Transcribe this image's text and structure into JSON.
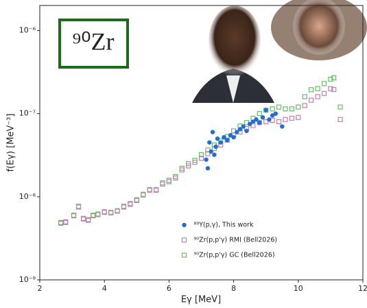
{
  "chart_data": {
    "type": "scatter",
    "title": null,
    "annotation": "⁹⁰Zr",
    "xlabel": "Eγ [MeV]",
    "ylabel": "f(Eγ) [MeV⁻³]",
    "xlim": [
      2,
      12
    ],
    "xticks": [
      2,
      4,
      6,
      8,
      10,
      12
    ],
    "ylim": [
      1e-09,
      2e-06
    ],
    "yscale": "log",
    "yticks": [
      {
        "value": 1e-09,
        "label": "10⁻⁹"
      },
      {
        "value": 1e-08,
        "label": "10⁻⁸"
      },
      {
        "value": 1e-07,
        "label": "10⁻⁷"
      },
      {
        "value": 1e-06,
        "label": "10⁻⁶"
      }
    ],
    "legend": "lower center",
    "series": [
      {
        "name": "⁸⁹Y(p,γ), This work",
        "color": "#1f6fd8",
        "marker": "circle",
        "x": [
          7.15,
          7.2,
          7.25,
          7.3,
          7.35,
          7.4,
          7.45,
          7.5,
          7.6,
          7.7,
          7.8,
          7.9,
          8.0,
          8.1,
          8.2,
          8.3,
          8.4,
          8.5,
          8.6,
          8.7,
          8.8,
          8.9,
          9.0,
          9.1,
          9.2,
          9.3,
          9.5
        ],
        "values": [
          2.8e-08,
          2.2e-08,
          4.5e-08,
          3.5e-08,
          6e-08,
          3.2e-08,
          4e-08,
          5e-08,
          4.5e-08,
          5.2e-08,
          4.8e-08,
          5.5e-08,
          5.2e-08,
          6e-08,
          6.5e-08,
          7e-08,
          6.2e-08,
          7.5e-08,
          8e-08,
          8.5e-08,
          7.8e-08,
          9e-08,
          1.1e-07,
          8.5e-08,
          9.5e-08,
          1e-07,
          7e-08
        ]
      },
      {
        "name": "⁹⁰Zr(p,p'γ) RMI (Bell2026)",
        "color": "#c77bb0",
        "marker": "square",
        "x": [
          2.65,
          2.8,
          3.05,
          3.2,
          3.35,
          3.5,
          3.65,
          3.8,
          4.0,
          4.2,
          4.4,
          4.6,
          4.8,
          5.0,
          5.2,
          5.4,
          5.6,
          5.8,
          6.0,
          6.2,
          6.4,
          6.6,
          6.8,
          7.0,
          7.2,
          7.4,
          7.6,
          7.8,
          8.0,
          8.2,
          8.4,
          8.6,
          8.8,
          9.0,
          9.2,
          9.4,
          9.6,
          9.8,
          10.0,
          10.2,
          10.4,
          10.6,
          10.8,
          11.0,
          11.1,
          11.3
        ],
        "values": [
          4.9e-09,
          5e-09,
          5.9e-09,
          7.5e-09,
          5.4e-09,
          5.2e-09,
          5.9e-09,
          6.1e-09,
          6.5e-09,
          6.4e-09,
          6.7e-09,
          7.5e-09,
          8.1e-09,
          9e-09,
          1.05e-08,
          1.2e-08,
          1.2e-08,
          1.42e-08,
          1.52e-08,
          1.68e-08,
          2.1e-08,
          2.35e-08,
          2.6e-08,
          2.9e-08,
          3.3e-08,
          3.8e-08,
          4.2e-08,
          4.8e-08,
          5.5e-08,
          6e-08,
          6.6e-08,
          7.2e-08,
          7.8e-08,
          8e-08,
          8.3e-08,
          8e-08,
          8.5e-08,
          8.8e-08,
          9e-08,
          1.25e-07,
          1.45e-07,
          1.6e-07,
          1.75e-07,
          2e-07,
          1.95e-07,
          8.5e-08
        ]
      },
      {
        "name": "⁹⁰Zr(p,p'γ) GC (Bell2026)",
        "color": "#5cc45c",
        "marker": "square",
        "x": [
          2.65,
          2.8,
          3.05,
          3.2,
          3.35,
          3.5,
          3.65,
          3.8,
          4.0,
          4.2,
          4.4,
          4.6,
          4.8,
          5.0,
          5.2,
          5.4,
          5.6,
          5.8,
          6.0,
          6.2,
          6.4,
          6.6,
          6.8,
          7.0,
          7.2,
          7.4,
          7.6,
          7.8,
          8.0,
          8.2,
          8.4,
          8.6,
          8.8,
          9.0,
          9.2,
          9.4,
          9.6,
          9.8,
          10.0,
          10.2,
          10.4,
          10.6,
          10.8,
          11.0,
          11.1,
          11.3
        ],
        "values": [
          4.8e-09,
          4.9e-09,
          6e-09,
          7.7e-09,
          5.5e-09,
          5.3e-09,
          6e-09,
          6.2e-09,
          6.6e-09,
          6.5e-09,
          6.8e-09,
          7.7e-09,
          8.3e-09,
          9.2e-09,
          1.07e-08,
          1.22e-08,
          1.22e-08,
          1.47e-08,
          1.58e-08,
          1.75e-08,
          2.2e-08,
          2.5e-08,
          2.75e-08,
          3.2e-08,
          3.65e-08,
          4.2e-08,
          4.7e-08,
          5.3e-08,
          6.2e-08,
          7.1e-08,
          7.8e-08,
          8.8e-08,
          1e-07,
          1.1e-07,
          1.14e-07,
          1.2e-07,
          1.14e-07,
          1.14e-07,
          1.2e-07,
          1.6e-07,
          1.94e-07,
          2e-07,
          2.3e-07,
          2.6e-07,
          2.7e-07,
          1.2e-07
        ]
      }
    ]
  }
}
